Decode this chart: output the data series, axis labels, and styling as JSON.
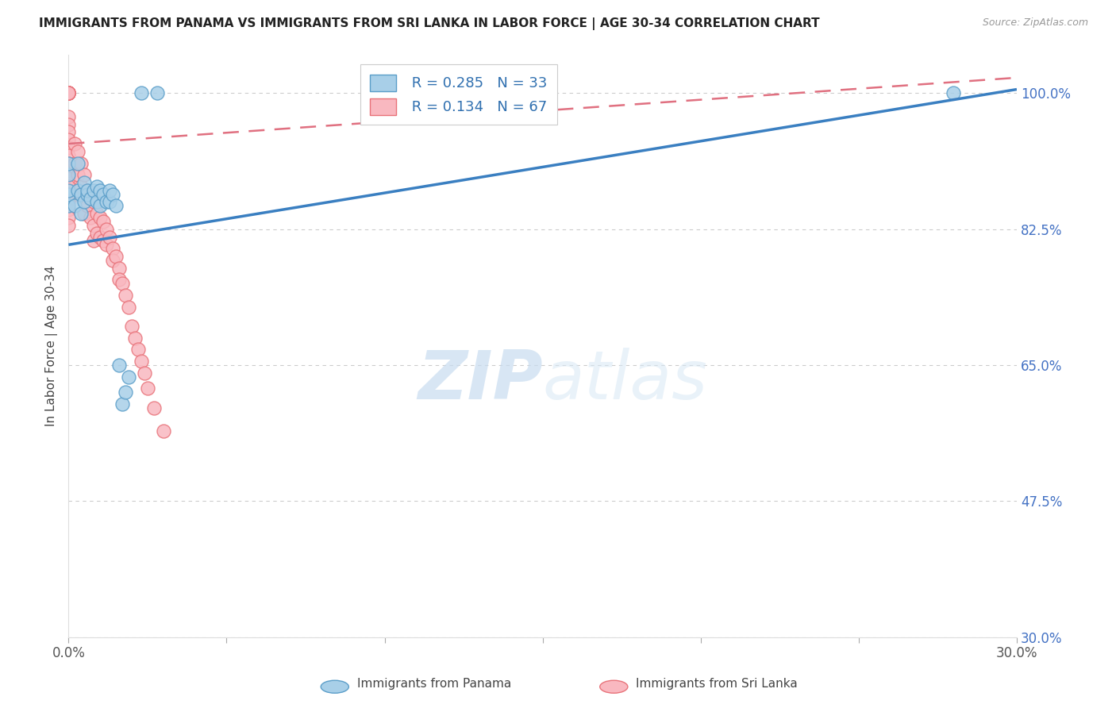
{
  "title": "IMMIGRANTS FROM PANAMA VS IMMIGRANTS FROM SRI LANKA IN LABOR FORCE | AGE 30-34 CORRELATION CHART",
  "source": "Source: ZipAtlas.com",
  "ylabel": "In Labor Force | Age 30-34",
  "x_min": 0.0,
  "x_max": 0.3,
  "y_min": 0.3,
  "y_max": 1.05,
  "y_ticks": [
    0.3,
    0.475,
    0.65,
    0.825,
    1.0
  ],
  "y_tick_labels": [
    "30.0%",
    "47.5%",
    "65.0%",
    "82.5%",
    "100.0%"
  ],
  "x_ticks": [
    0.0,
    0.05,
    0.1,
    0.15,
    0.2,
    0.25,
    0.3
  ],
  "x_tick_labels": [
    "0.0%",
    "",
    "",
    "",
    "",
    "",
    "30.0%"
  ],
  "panama_color": "#a8cfe8",
  "srilanka_color": "#f9b8c0",
  "panama_edge_color": "#5b9ec9",
  "srilanka_edge_color": "#e8737a",
  "panama_R": 0.285,
  "panama_N": 33,
  "srilanka_R": 0.134,
  "srilanka_N": 67,
  "panama_line_color": "#3a7fc1",
  "srilanka_line_color": "#e07080",
  "watermark_zip": "ZIP",
  "watermark_atlas": "atlas",
  "legend_label_panama": "Immigrants from Panama",
  "legend_label_srilanka": "Immigrants from Sri Lanka",
  "panama_x": [
    0.0,
    0.0,
    0.0,
    0.0,
    0.0,
    0.002,
    0.003,
    0.003,
    0.004,
    0.004,
    0.005,
    0.005,
    0.006,
    0.006,
    0.007,
    0.008,
    0.009,
    0.009,
    0.01,
    0.01,
    0.011,
    0.012,
    0.013,
    0.013,
    0.014,
    0.015,
    0.016,
    0.017,
    0.018,
    0.019,
    0.023,
    0.028,
    0.28
  ],
  "panama_y": [
    0.855,
    0.87,
    0.875,
    0.895,
    0.91,
    0.855,
    0.875,
    0.91,
    0.845,
    0.87,
    0.86,
    0.885,
    0.87,
    0.875,
    0.865,
    0.875,
    0.86,
    0.88,
    0.855,
    0.875,
    0.87,
    0.86,
    0.86,
    0.875,
    0.87,
    0.855,
    0.65,
    0.6,
    0.615,
    0.635,
    1.0,
    1.0,
    1.0
  ],
  "srilanka_x": [
    0.0,
    0.0,
    0.0,
    0.0,
    0.0,
    0.0,
    0.0,
    0.0,
    0.0,
    0.0,
    0.0,
    0.0,
    0.0,
    0.0,
    0.0,
    0.0,
    0.0,
    0.0,
    0.0,
    0.0,
    0.0,
    0.0,
    0.0,
    0.0,
    0.0,
    0.002,
    0.002,
    0.003,
    0.003,
    0.003,
    0.004,
    0.004,
    0.005,
    0.005,
    0.005,
    0.006,
    0.006,
    0.007,
    0.007,
    0.008,
    0.008,
    0.008,
    0.009,
    0.009,
    0.01,
    0.01,
    0.011,
    0.011,
    0.012,
    0.012,
    0.013,
    0.014,
    0.014,
    0.015,
    0.016,
    0.016,
    0.017,
    0.018,
    0.019,
    0.02,
    0.021,
    0.022,
    0.023,
    0.024,
    0.025,
    0.027,
    0.03
  ],
  "srilanka_y": [
    1.0,
    1.0,
    1.0,
    1.0,
    1.0,
    1.0,
    1.0,
    1.0,
    1.0,
    1.0,
    0.97,
    0.96,
    0.95,
    0.94,
    0.93,
    0.92,
    0.91,
    0.9,
    0.89,
    0.88,
    0.87,
    0.86,
    0.85,
    0.84,
    0.83,
    0.935,
    0.91,
    0.925,
    0.895,
    0.87,
    0.91,
    0.88,
    0.895,
    0.87,
    0.845,
    0.875,
    0.855,
    0.865,
    0.84,
    0.86,
    0.83,
    0.81,
    0.845,
    0.82,
    0.84,
    0.815,
    0.835,
    0.81,
    0.825,
    0.805,
    0.815,
    0.8,
    0.785,
    0.79,
    0.775,
    0.76,
    0.755,
    0.74,
    0.725,
    0.7,
    0.685,
    0.67,
    0.655,
    0.64,
    0.62,
    0.595,
    0.565
  ],
  "panama_line_x0": 0.0,
  "panama_line_y0": 0.805,
  "panama_line_x1": 0.3,
  "panama_line_y1": 1.005,
  "srilanka_line_x0": 0.0,
  "srilanka_line_y0": 0.935,
  "srilanka_line_x1": 0.3,
  "srilanka_line_y1": 1.02
}
